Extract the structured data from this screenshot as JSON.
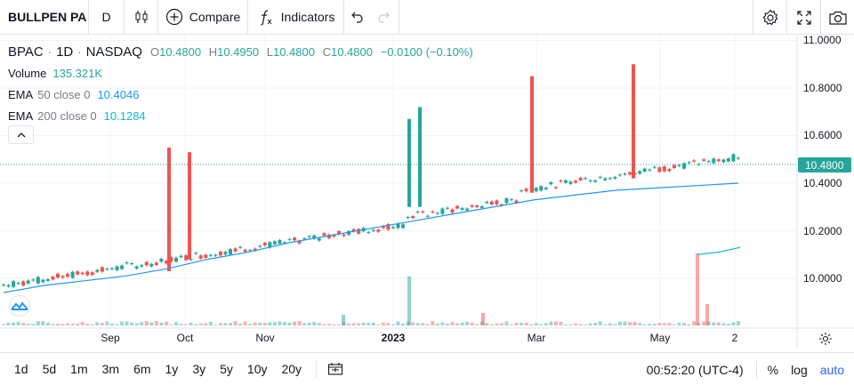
{
  "toolbar": {
    "symbol": "BULLPEN PA",
    "interval": "D",
    "compare_label": "Compare",
    "indicators_label": "Indicators"
  },
  "legend": {
    "symbol": "BPAC",
    "timeframe": "1D",
    "exchange": "NASDAQ",
    "open_label": "O",
    "open": "10.4800",
    "high_label": "H",
    "high": "10.4950",
    "low_label": "L",
    "low": "10.4800",
    "close_label": "C",
    "close": "10.4800",
    "change": "−0.0100 (−0.10%)",
    "volume_label": "Volume",
    "volume": "135.321K",
    "ema50_label": "EMA",
    "ema50_params": "50 close 0",
    "ema50_value": "10.4046",
    "ema200_label": "EMA",
    "ema200_params": "200 close 0",
    "ema200_value": "10.1284"
  },
  "price_axis": [
    "11.0000",
    "10.8000",
    "10.6000",
    "10.4000",
    "10.2000",
    "10.0000"
  ],
  "last_price": "10.4800",
  "time_axis": [
    "Sep",
    "Oct",
    "Nov",
    "2023",
    "Mar",
    "May",
    "2"
  ],
  "bottom": {
    "ranges": [
      "1d",
      "5d",
      "1m",
      "3m",
      "6m",
      "1y",
      "3y",
      "5y",
      "10y",
      "20y"
    ],
    "clock": "00:52:20 (UTC-4)",
    "percent": "%",
    "log": "log",
    "auto": "auto"
  },
  "colors": {
    "up": "#26a69a",
    "down": "#ef5350",
    "ema50": "#2196f3",
    "ema200": "#00bcd4"
  },
  "chart_data": {
    "type": "candlestick",
    "series": [
      {
        "name": "BPAC",
        "type": "candlestick"
      },
      {
        "name": "EMA 50 close 0",
        "type": "line",
        "last": 10.4046
      },
      {
        "name": "EMA 200 close 0",
        "type": "line",
        "last": 10.1284
      },
      {
        "name": "Volume",
        "type": "bar",
        "last": "135.321K"
      }
    ],
    "ylim": [
      9.8,
      11.0
    ],
    "yticks": [
      10.0,
      10.2,
      10.4,
      10.6,
      10.8,
      11.0
    ],
    "xticks": [
      "Sep",
      "Oct",
      "Nov",
      "2023",
      "Mar",
      "May",
      "2"
    ],
    "ema50": [
      9.94,
      9.97,
      9.99,
      10.01,
      10.04,
      10.08,
      10.11,
      10.15,
      10.18,
      10.21,
      10.24,
      10.27,
      10.3,
      10.33,
      10.35,
      10.37,
      10.38,
      10.39,
      10.4
    ],
    "ema200": [
      10.1,
      10.11,
      10.13
    ]
  }
}
